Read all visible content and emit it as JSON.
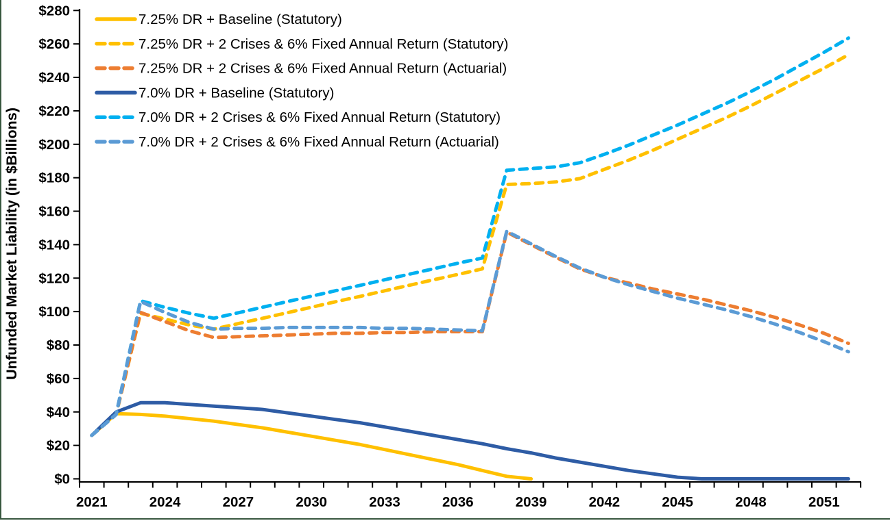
{
  "chart_data": {
    "type": "line",
    "x": [
      2021,
      2022,
      2023,
      2024,
      2025,
      2026,
      2027,
      2028,
      2029,
      2030,
      2031,
      2032,
      2033,
      2034,
      2035,
      2036,
      2037,
      2038,
      2039,
      2040,
      2041,
      2042,
      2043,
      2044,
      2045,
      2046,
      2047,
      2048,
      2049,
      2050,
      2051,
      2052
    ],
    "x_tick_labels": [
      "2021",
      "2024",
      "2027",
      "2030",
      "2033",
      "2036",
      "2039",
      "2042",
      "2045",
      "2048",
      "2051"
    ],
    "y_tick_labels": [
      "$0",
      "$20",
      "$40",
      "$60",
      "$80",
      "$100",
      "$120",
      "$140",
      "$160",
      "$180",
      "$200",
      "$220",
      "$240",
      "$260",
      "$280"
    ],
    "ylabel": "Unfunded Market Liability (in $Billions)",
    "xlabel": "",
    "title": "",
    "ylim": [
      0,
      280
    ],
    "y_tick_step": 20,
    "grid": false,
    "legend_position": "top-left",
    "series": [
      {
        "name": "7.25% DR + Baseline (Statutory)",
        "color": "#FFC000",
        "style": "solid",
        "values": [
          26,
          39,
          38.5,
          37.5,
          36,
          34.5,
          32.5,
          30.5,
          28,
          25.5,
          23,
          20.5,
          17.5,
          14.5,
          11.5,
          8.5,
          5,
          1.5,
          0,
          null,
          null,
          null,
          null,
          null,
          null,
          null,
          null,
          null,
          null,
          null,
          null,
          null
        ]
      },
      {
        "name": "7.25% DR + 2 Crises & 6% Fixed Annual Return (Statutory)",
        "color": "#FFC000",
        "style": "dashed",
        "values": [
          26,
          38.5,
          99,
          95.5,
          92,
          89.5,
          92.8,
          96,
          99.3,
          102.6,
          105.9,
          109.1,
          112.4,
          115.7,
          119,
          122.2,
          125.5,
          176,
          176.5,
          177.5,
          179.5,
          185,
          190.5,
          196.5,
          203,
          209.5,
          216,
          223,
          230.5,
          238,
          245.5,
          253.5
        ]
      },
      {
        "name": "7.25% DR + 2 Crises & 6% Fixed Annual Return (Actuarial)",
        "color": "#ED7D31",
        "style": "dashed",
        "values": [
          26,
          38.5,
          99.5,
          94,
          88.5,
          84.5,
          85,
          85.5,
          86,
          86.5,
          87,
          87,
          87.5,
          87.5,
          88,
          88,
          88,
          147.5,
          140,
          132.5,
          125.5,
          120.5,
          117,
          113.5,
          110.5,
          107.5,
          104,
          100.5,
          96.5,
          92,
          87,
          81
        ]
      },
      {
        "name": "7.0% DR + Baseline (Statutory)",
        "color": "#2E5CA5",
        "style": "solid",
        "values": [
          26,
          40,
          45.5,
          45.5,
          44.5,
          43.5,
          42.5,
          41.5,
          39.5,
          37.5,
          35.5,
          33.5,
          31,
          28.5,
          26,
          23.5,
          21,
          18,
          15.5,
          12.5,
          10,
          7.5,
          5,
          3,
          1,
          0,
          0,
          0,
          0,
          0,
          0,
          0
        ]
      },
      {
        "name": "7.0% DR + 2 Crises & 6% Fixed Annual Return (Statutory)",
        "color": "#00B0F0",
        "style": "dashed",
        "values": [
          26,
          38.5,
          106.5,
          102.5,
          99,
          96,
          99.3,
          102.6,
          105.9,
          109.2,
          112.5,
          115.7,
          119,
          122.3,
          125.6,
          128.9,
          132,
          184.5,
          185.5,
          186.5,
          189,
          194,
          199.5,
          205.5,
          211.5,
          218,
          224.5,
          231.5,
          239,
          247,
          255,
          263.5
        ]
      },
      {
        "name": "7.0% DR + 2 Crises & 6% Fixed Annual Return (Actuarial)",
        "color": "#5B9BD5",
        "style": "dashed",
        "values": [
          26,
          38.5,
          106,
          99.5,
          93.5,
          89.5,
          90,
          90,
          90.5,
          90.5,
          90.5,
          90.5,
          90,
          90,
          89.5,
          89,
          88.5,
          148,
          140.5,
          133,
          126,
          120.5,
          116,
          112,
          108,
          104.5,
          101,
          97,
          92.5,
          87.5,
          82,
          76
        ]
      }
    ]
  },
  "colors": {
    "axis": "#000000",
    "text": "#000000",
    "page_border_green": "#38573F",
    "background": "#FFFFFF"
  }
}
